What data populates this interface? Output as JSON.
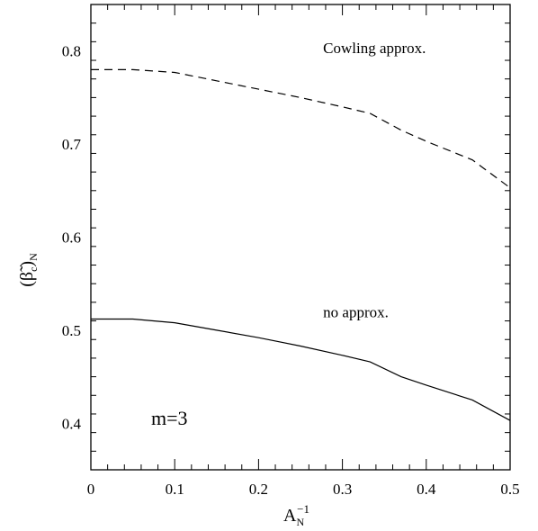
{
  "chart_data": {
    "type": "line",
    "x_ticks": [
      "0",
      "0.1",
      "0.2",
      "0.3",
      "0.4",
      "0.5"
    ],
    "y_ticks": [
      "0.4",
      "0.5",
      "0.6",
      "0.7",
      "0.8"
    ],
    "xlim": [
      0,
      0.5
    ],
    "ylim": [
      0.35,
      0.85
    ],
    "grid": false,
    "xlabel": {
      "base": "A",
      "subscript": "N",
      "superscript": "−1"
    },
    "ylabel": {
      "prefix": "(",
      "symbol": "β̃",
      "sub_c": "c",
      "suffix": ")",
      "subscript": "N"
    },
    "series": [
      {
        "style": "dashed",
        "label": "Cowling approx.",
        "x": [
          0,
          0.05,
          0.1,
          0.15,
          0.2,
          0.25,
          0.3,
          0.333,
          0.37,
          0.4,
          0.455,
          0.5
        ],
        "y": [
          0.78,
          0.78,
          0.777,
          0.768,
          0.759,
          0.75,
          0.74,
          0.733,
          0.715,
          0.703,
          0.683,
          0.653
        ]
      },
      {
        "style": "solid",
        "label": "no approx.",
        "x": [
          0,
          0.05,
          0.1,
          0.15,
          0.2,
          0.25,
          0.3,
          0.333,
          0.37,
          0.4,
          0.455,
          0.5
        ],
        "y": [
          0.512,
          0.512,
          0.508,
          0.5,
          0.492,
          0.483,
          0.473,
          0.466,
          0.45,
          0.441,
          0.425,
          0.403
        ]
      }
    ],
    "annotations": {
      "panel": "m=3"
    }
  }
}
